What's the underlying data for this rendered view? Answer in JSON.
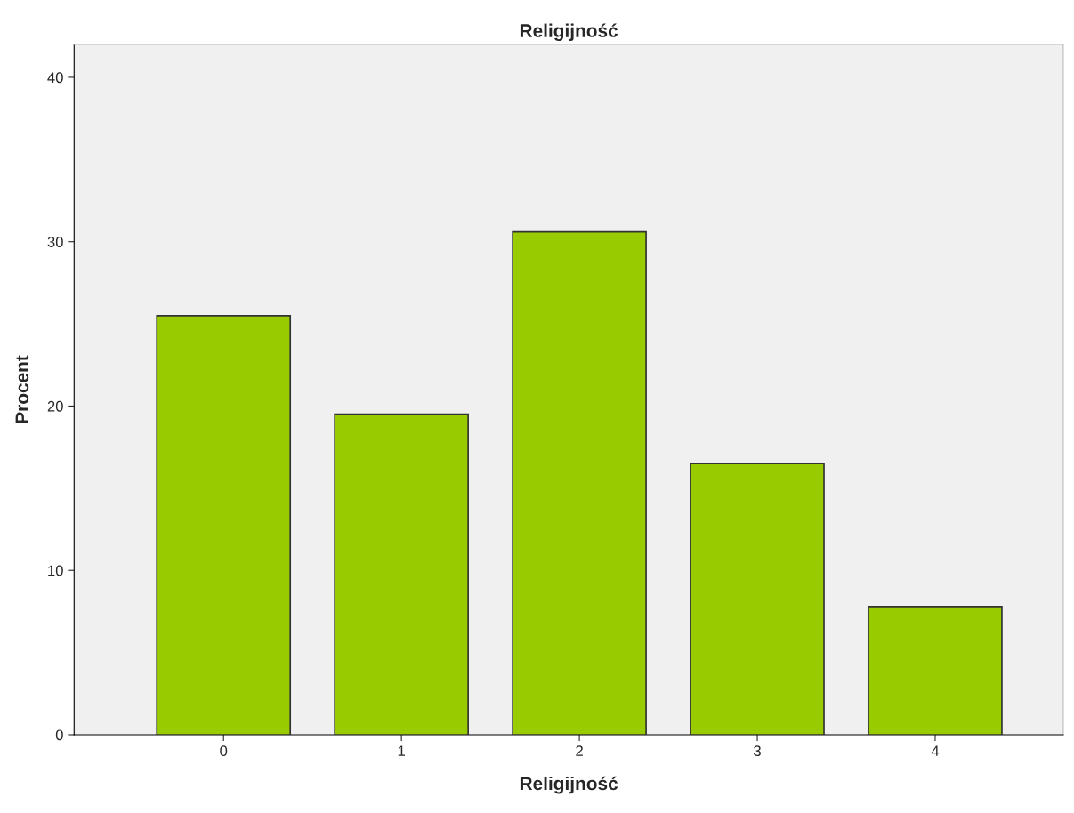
{
  "chart_data": {
    "type": "bar",
    "title": "Religijność",
    "xlabel": "Religijność",
    "ylabel": "Procent",
    "categories": [
      "0",
      "1",
      "2",
      "3",
      "4"
    ],
    "values": [
      25.5,
      19.5,
      30.6,
      16.5,
      7.8
    ],
    "color": "#99cc00",
    "ylim": [
      0,
      42
    ],
    "yticks": [
      0,
      10,
      20,
      30,
      40
    ],
    "grid": false
  }
}
